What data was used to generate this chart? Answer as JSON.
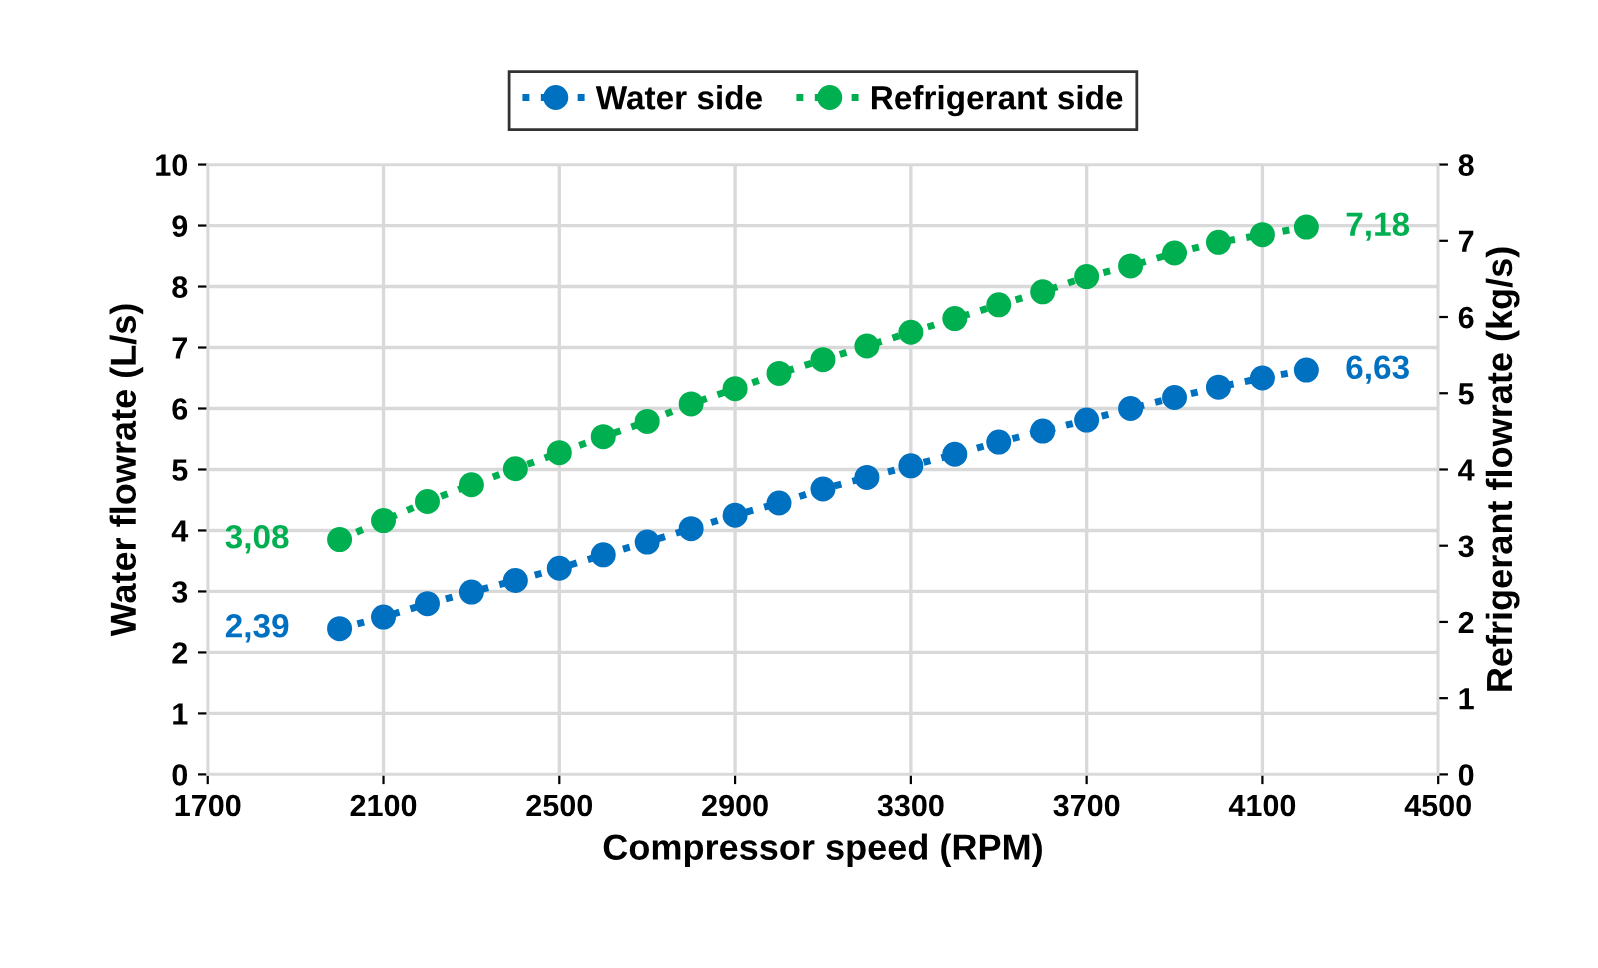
{
  "chart_data": {
    "type": "line",
    "xlabel": "Compressor speed (RPM)",
    "ylabel": "Water flowrate (L/s)",
    "y2label": "Refrigerant flowrate (kg/s)",
    "x": [
      2000,
      2100,
      2200,
      2300,
      2400,
      2500,
      2600,
      2700,
      2800,
      2900,
      3000,
      3100,
      3200,
      3300,
      3400,
      3500,
      3600,
      3700,
      3800,
      3900,
      4000,
      4100,
      4200
    ],
    "series": [
      {
        "name": "Water side",
        "color": "#0070c0",
        "values": [
          2.39,
          2.58,
          2.8,
          2.99,
          3.18,
          3.38,
          3.6,
          3.81,
          4.03,
          4.25,
          4.45,
          4.68,
          4.87,
          5.06,
          5.25,
          5.45,
          5.63,
          5.81,
          6.0,
          6.18,
          6.35,
          6.5,
          6.63
        ],
        "value_labels": [
          "2,39",
          null,
          null,
          null,
          null,
          null,
          null,
          null,
          null,
          null,
          null,
          null,
          null,
          null,
          null,
          null,
          null,
          null,
          null,
          null,
          null,
          null,
          "6,63"
        ]
      },
      {
        "name": "Refrigerant side",
        "color": "#00b050",
        "axis": "y2",
        "values": [
          3.08,
          3.33,
          3.58,
          3.8,
          4.01,
          4.22,
          4.43,
          4.63,
          4.86,
          5.06,
          5.26,
          5.44,
          5.62,
          5.8,
          5.98,
          6.16,
          6.33,
          6.53,
          6.67,
          6.84,
          6.98,
          7.08,
          7.18
        ],
        "value_labels": [
          "3,08",
          null,
          null,
          null,
          null,
          null,
          null,
          null,
          null,
          null,
          null,
          null,
          null,
          null,
          null,
          null,
          null,
          null,
          null,
          null,
          null,
          null,
          "7,18"
        ]
      }
    ],
    "xlim": [
      1700,
      4500
    ],
    "xticks": [
      1700,
      2100,
      2500,
      2900,
      3300,
      3700,
      4100,
      4500
    ],
    "ylim": [
      0,
      10
    ],
    "yticks": [
      0,
      1,
      2,
      3,
      4,
      5,
      6,
      7,
      8,
      9,
      10
    ],
    "y2lim": [
      0,
      8
    ],
    "y2ticks": [
      0,
      1,
      2,
      3,
      4,
      5,
      6,
      7,
      8
    ],
    "grid": true,
    "legend": "top",
    "marker": "circle",
    "line_style": "dotted"
  }
}
